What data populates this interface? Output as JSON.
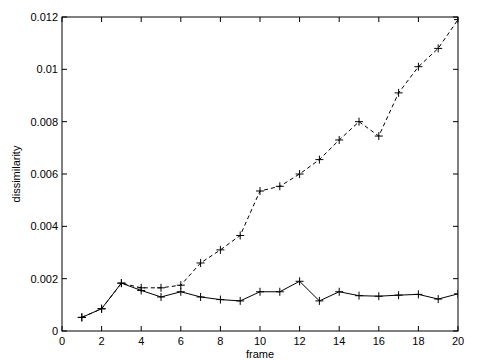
{
  "chart_data": {
    "type": "line",
    "x_label": "frame",
    "y_label": "dissimilarity",
    "x": [
      1,
      2,
      3,
      4,
      5,
      6,
      7,
      8,
      9,
      10,
      11,
      12,
      13,
      14,
      15,
      16,
      17,
      18,
      19,
      20
    ],
    "series": [
      {
        "color": "#000000",
        "line_style": "dashed",
        "marker": "plus",
        "values": [
          0.00052,
          0.00085,
          0.00183,
          0.00165,
          0.00165,
          0.00175,
          0.0026,
          0.0031,
          0.00365,
          0.00535,
          0.00553,
          0.006,
          0.00655,
          0.0073,
          0.008,
          0.00745,
          0.0091,
          0.0101,
          0.0108,
          0.0119
        ]
      },
      {
        "color": "#000000",
        "line_style": "solid",
        "marker": "plus",
        "values": [
          0.00052,
          0.00085,
          0.00183,
          0.00155,
          0.0013,
          0.0015,
          0.0013,
          0.0012,
          0.00115,
          0.0015,
          0.0015,
          0.0019,
          0.00115,
          0.0015,
          0.00135,
          0.00133,
          0.00137,
          0.0014,
          0.00122,
          0.00142
        ]
      }
    ],
    "xlim": [
      0,
      20
    ],
    "xticks": [
      0,
      2,
      4,
      6,
      8,
      10,
      12,
      14,
      16,
      18,
      20
    ],
    "ylim": [
      0,
      0.012
    ],
    "yticks": [
      0,
      0.002,
      0.004,
      0.006,
      0.008,
      0.01,
      0.012
    ],
    "grid": false
  }
}
